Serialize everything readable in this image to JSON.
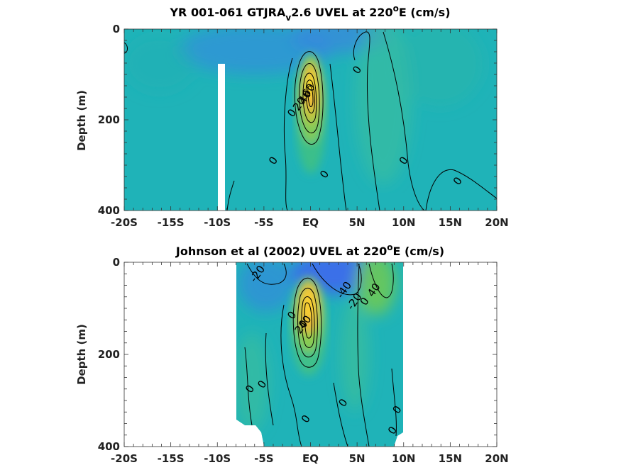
{
  "chart_data": [
    {
      "type": "heatmap",
      "title_parts": {
        "pre": "YR 001-061 GTJRA",
        "sub": "v",
        "mid": "2.6 UVEL at 220",
        "sup": "o",
        "post": "E (cm/s)"
      },
      "ylabel": "Depth (m)",
      "xticks": [
        "-20S",
        "-15S",
        "-10S",
        "-5S",
        "EQ",
        "5N",
        "10N",
        "15N",
        "20N"
      ],
      "xtick_values": [
        -20,
        -15,
        -10,
        -5,
        0,
        5,
        10,
        15,
        20
      ],
      "yticks": [
        "0",
        "200",
        "400"
      ],
      "ytick_values": [
        0,
        200,
        400
      ],
      "xlim": [
        -20,
        20
      ],
      "ylim": [
        400,
        0
      ],
      "contour_labels": [
        {
          "text": "0",
          "lat": 5.0,
          "depth": 90
        },
        {
          "text": "0",
          "lat": -4.0,
          "depth": 290
        },
        {
          "text": "0",
          "lat": 1.5,
          "depth": 320
        },
        {
          "text": "0",
          "lat": 10.0,
          "depth": 290
        },
        {
          "text": "0",
          "lat": 15.8,
          "depth": 335
        },
        {
          "text": "0",
          "lat": -2.0,
          "depth": 185
        },
        {
          "text": "20",
          "lat": -1.2,
          "depth": 165
        },
        {
          "text": "40",
          "lat": -0.6,
          "depth": 150
        },
        {
          "text": "60",
          "lat": -0.2,
          "depth": 135
        }
      ]
    },
    {
      "type": "heatmap",
      "title_parts": {
        "pre": "Johnson et al (2002) UVEL at 220",
        "sub": "",
        "mid": "",
        "sup": "o",
        "post": "E (cm/s)"
      },
      "ylabel": "Depth (m)",
      "xticks": [
        "-20S",
        "-15S",
        "-10S",
        "-5S",
        "EQ",
        "5N",
        "10N",
        "15N",
        "20N"
      ],
      "xtick_values": [
        -20,
        -15,
        -10,
        -5,
        0,
        5,
        10,
        15,
        20
      ],
      "yticks": [
        "0",
        "200",
        "400"
      ],
      "ytick_values": [
        0,
        200,
        400
      ],
      "xlim": [
        -20,
        20
      ],
      "ylim": [
        400,
        0
      ],
      "contour_labels": [
        {
          "text": "-20",
          "lat": -5.7,
          "depth": 25
        },
        {
          "text": "-40",
          "lat": 3.6,
          "depth": 60
        },
        {
          "text": "-20",
          "lat": 4.7,
          "depth": 85
        },
        {
          "text": "0",
          "lat": 5.8,
          "depth": 85
        },
        {
          "text": "40",
          "lat": 6.8,
          "depth": 60
        },
        {
          "text": "0",
          "lat": -2.0,
          "depth": 115
        },
        {
          "text": "20",
          "lat": -1.0,
          "depth": 140
        },
        {
          "text": "40",
          "lat": -0.6,
          "depth": 130
        },
        {
          "text": "0",
          "lat": -6.5,
          "depth": 275
        },
        {
          "text": "0",
          "lat": -5.2,
          "depth": 265
        },
        {
          "text": "0",
          "lat": 3.5,
          "depth": 305
        },
        {
          "text": "0",
          "lat": 9.3,
          "depth": 320
        },
        {
          "text": "0",
          "lat": 8.8,
          "depth": 365
        },
        {
          "text": "0",
          "lat": -0.5,
          "depth": 340
        }
      ]
    }
  ]
}
